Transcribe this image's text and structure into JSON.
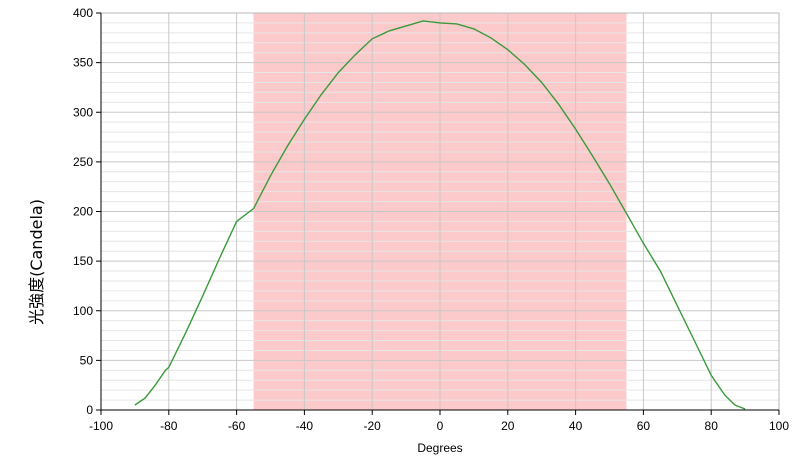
{
  "chart_data": {
    "type": "line",
    "title": "",
    "xlabel": "Degrees",
    "ylabel": "光強度(Candela)",
    "xlim": [
      -100,
      100
    ],
    "ylim": [
      0,
      400
    ],
    "xticks": [
      -100,
      -80,
      -60,
      -40,
      -20,
      0,
      20,
      40,
      60,
      80,
      100
    ],
    "yticks": [
      0,
      50,
      100,
      150,
      200,
      250,
      300,
      350,
      400
    ],
    "grid": true,
    "legend": "none",
    "highlight_band": {
      "x_from": -55,
      "x_to": 55,
      "color": "#fccaca"
    },
    "series": [
      {
        "color": "#3a9a3a",
        "points": [
          [
            -90,
            5
          ],
          [
            -87,
            12
          ],
          [
            -84,
            25
          ],
          [
            -81,
            40
          ],
          [
            -80,
            43
          ],
          [
            -75,
            78
          ],
          [
            -70,
            115
          ],
          [
            -65,
            153
          ],
          [
            -60,
            190
          ],
          [
            -55,
            203
          ],
          [
            -50,
            236
          ],
          [
            -45,
            266
          ],
          [
            -40,
            293
          ],
          [
            -35,
            318
          ],
          [
            -30,
            340
          ],
          [
            -25,
            358
          ],
          [
            -20,
            374
          ],
          [
            -15,
            382
          ],
          [
            -10,
            387
          ],
          [
            -5,
            392
          ],
          [
            0,
            390
          ],
          [
            5,
            389
          ],
          [
            10,
            384
          ],
          [
            15,
            375
          ],
          [
            20,
            363
          ],
          [
            25,
            348
          ],
          [
            30,
            330
          ],
          [
            35,
            308
          ],
          [
            40,
            283
          ],
          [
            45,
            256
          ],
          [
            50,
            228
          ],
          [
            55,
            198
          ],
          [
            60,
            168
          ],
          [
            65,
            140
          ],
          [
            70,
            105
          ],
          [
            75,
            70
          ],
          [
            80,
            35
          ],
          [
            84,
            15
          ],
          [
            87,
            5
          ],
          [
            90,
            1
          ]
        ]
      }
    ]
  }
}
